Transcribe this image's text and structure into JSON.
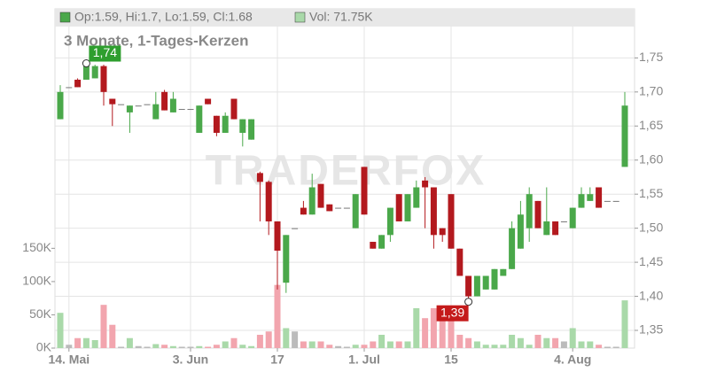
{
  "chart_data": {
    "type": "candlestick",
    "title": "3 Monate, 1-Tages-Kerzen",
    "legend": [
      "Op:1.59, Hi:1.7, Lo:1.59, Cl:1.68",
      "Vol: 71.75K"
    ],
    "watermark": "TRADERFOX",
    "max_label": "1,74",
    "min_label": "1,39",
    "categories": [
      null,
      "14. Mai",
      null,
      null,
      null,
      null,
      null,
      null,
      null,
      null,
      null,
      null,
      null,
      null,
      null,
      "3. Jun",
      null,
      null,
      null,
      null,
      null,
      null,
      null,
      null,
      null,
      "17",
      null,
      null,
      null,
      null,
      null,
      null,
      null,
      null,
      null,
      "1. Jul",
      null,
      null,
      null,
      null,
      null,
      null,
      null,
      null,
      null,
      "15",
      null,
      null,
      null,
      null,
      null,
      null,
      null,
      null,
      null,
      null,
      null,
      null,
      null,
      "4. Aug",
      null,
      null,
      null,
      null,
      null,
      null
    ],
    "open": [
      1.66,
      1.707,
      1.718,
      1.718,
      1.72,
      1.738,
      1.69,
      1.682,
      1.67,
      1.68,
      1.682,
      1.66,
      1.7,
      1.67,
      1.675,
      1.675,
      1.64,
      1.69,
      1.665,
      1.64,
      1.69,
      1.64,
      1.63,
      1.581,
      1.568,
      1.51,
      1.42,
      1.5,
      1.53,
      1.52,
      1.565,
      1.535,
      1.53,
      1.53,
      1.5,
      1.59,
      1.48,
      1.47,
      1.49,
      1.55,
      1.51,
      1.53,
      1.57,
      1.56,
      1.5,
      1.55,
      1.47,
      1.43,
      1.4,
      1.41,
      1.41,
      1.43,
      1.44,
      1.47,
      1.5,
      1.54,
      1.49,
      1.51,
      1.51,
      1.5,
      1.53,
      1.54,
      1.56,
      1.54,
      1.54,
      1.59
    ],
    "high": [
      1.71,
      1.707,
      1.72,
      1.742,
      1.74,
      1.74,
      1.69,
      1.682,
      1.68,
      1.68,
      1.682,
      1.7,
      1.703,
      1.7,
      1.675,
      1.675,
      1.68,
      1.69,
      1.665,
      1.67,
      1.69,
      1.66,
      1.66,
      1.583,
      1.57,
      1.51,
      1.49,
      1.5,
      1.54,
      1.58,
      1.565,
      1.535,
      1.53,
      1.53,
      1.55,
      1.59,
      1.48,
      1.49,
      1.53,
      1.55,
      1.55,
      1.57,
      1.575,
      1.56,
      1.5,
      1.55,
      1.47,
      1.43,
      1.43,
      1.43,
      1.44,
      1.44,
      1.51,
      1.54,
      1.56,
      1.54,
      1.56,
      1.51,
      1.51,
      1.53,
      1.56,
      1.56,
      1.56,
      1.54,
      1.54,
      1.7
    ],
    "low": [
      1.66,
      1.707,
      1.707,
      1.718,
      1.72,
      1.68,
      1.65,
      1.682,
      1.64,
      1.68,
      1.682,
      1.66,
      1.673,
      1.67,
      1.675,
      1.675,
      1.64,
      1.682,
      1.635,
      1.64,
      1.66,
      1.62,
      1.63,
      1.51,
      1.49,
      1.41,
      1.405,
      1.5,
      1.52,
      1.52,
      1.53,
      1.525,
      1.53,
      1.53,
      1.5,
      1.52,
      1.47,
      1.47,
      1.48,
      1.51,
      1.51,
      1.53,
      1.5,
      1.47,
      1.48,
      1.47,
      1.43,
      1.392,
      1.4,
      1.41,
      1.41,
      1.43,
      1.44,
      1.47,
      1.48,
      1.5,
      1.49,
      1.49,
      1.51,
      1.5,
      1.53,
      1.54,
      1.53,
      1.54,
      1.54,
      1.59
    ],
    "close": [
      1.7,
      1.707,
      1.707,
      1.738,
      1.738,
      1.7,
      1.682,
      1.682,
      1.68,
      1.68,
      1.682,
      1.682,
      1.673,
      1.69,
      1.675,
      1.675,
      1.68,
      1.682,
      1.64,
      1.665,
      1.66,
      1.66,
      1.66,
      1.568,
      1.51,
      1.467,
      1.49,
      1.5,
      1.52,
      1.56,
      1.53,
      1.525,
      1.53,
      1.53,
      1.55,
      1.52,
      1.47,
      1.49,
      1.53,
      1.51,
      1.55,
      1.56,
      1.56,
      1.49,
      1.49,
      1.47,
      1.43,
      1.4,
      1.43,
      1.43,
      1.44,
      1.44,
      1.5,
      1.52,
      1.55,
      1.5,
      1.51,
      1.49,
      1.51,
      1.53,
      1.55,
      1.55,
      1.53,
      1.54,
      1.54,
      1.68
    ],
    "volume": [
      53000,
      5000,
      15000,
      15000,
      12000,
      65000,
      35000,
      2000,
      15000,
      3000,
      2000,
      6000,
      5000,
      3000,
      2000,
      2000,
      3000,
      2000,
      5000,
      10000,
      15000,
      5000,
      3000,
      20000,
      25000,
      95000,
      30000,
      25000,
      10000,
      10000,
      10000,
      5000,
      3000,
      2000,
      5000,
      5000,
      10000,
      20000,
      10000,
      10000,
      10000,
      60000,
      45000,
      60000,
      55000,
      55000,
      20000,
      15000,
      10000,
      5000,
      5000,
      5000,
      20000,
      15000,
      5000,
      20000,
      15000,
      15000,
      10000,
      30000,
      10000,
      10000,
      5000,
      2000,
      2000,
      71750
    ],
    "ylim": [
      1.324,
      1.822
    ],
    "yticks": [
      {
        "value": 1.35,
        "label": "1,35"
      },
      {
        "value": 1.4,
        "label": "1,40"
      },
      {
        "value": 1.45,
        "label": "1,45"
      },
      {
        "value": 1.5,
        "label": "1,50"
      },
      {
        "value": 1.55,
        "label": "1,55"
      },
      {
        "value": 1.6,
        "label": "1,60"
      },
      {
        "value": 1.65,
        "label": "1,65"
      },
      {
        "value": 1.7,
        "label": "1,70"
      },
      {
        "value": 1.75,
        "label": "1,75"
      }
    ],
    "y2lim": [
      0,
      510000
    ],
    "y2ticks": [
      {
        "value": 0,
        "label": "0K"
      },
      {
        "value": 50000,
        "label": "50K"
      },
      {
        "value": 100000,
        "label": "100K"
      },
      {
        "value": 150000,
        "label": "150K"
      }
    ],
    "grid": true,
    "up_color": "#4aa84a",
    "down_color": "#b3191e",
    "flat_color": "#777777",
    "vol_up_color": "#a9d9a9",
    "vol_down_color": "#f2a5ae",
    "vol_flat_color": "#bbbbbb"
  }
}
